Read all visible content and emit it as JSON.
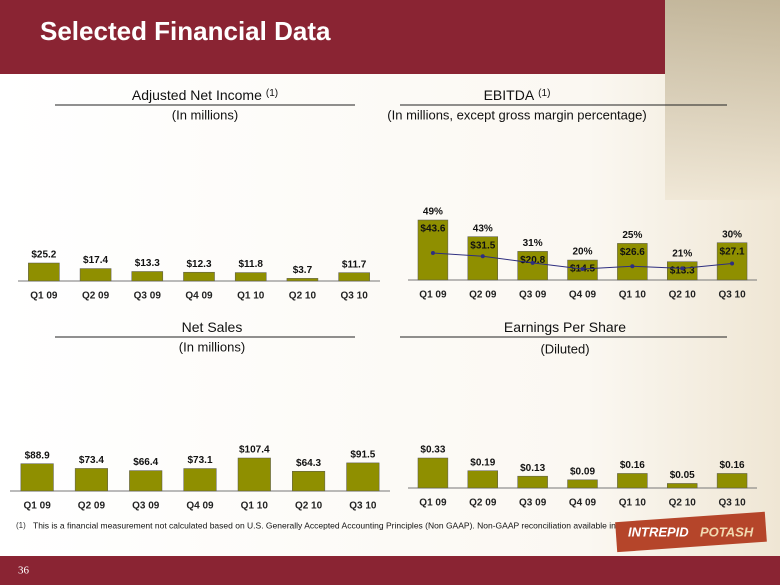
{
  "title": "Selected Financial Data",
  "chart_data": [
    {
      "type": "bar",
      "title": "Adjusted Net Income",
      "title_note": "(1)",
      "subtitle": "(In millions)",
      "categories": [
        "Q1 09",
        "Q2 09",
        "Q3 09",
        "Q4 09",
        "Q1 10",
        "Q2 10",
        "Q3 10"
      ],
      "values": [
        25.2,
        17.4,
        13.3,
        12.3,
        11.8,
        3.7,
        11.7
      ],
      "value_labels": [
        "$25.2",
        "$17.4",
        "$13.3",
        "$12.3",
        "$11.8",
        "$3.7",
        "$11.7"
      ],
      "color": "#8f8f00"
    },
    {
      "type": "bar-line",
      "title": "EBITDA",
      "title_note": "(1)",
      "subtitle": "(In millions, except gross margin percentage)",
      "categories": [
        "Q1 09",
        "Q2 09",
        "Q3 09",
        "Q4 09",
        "Q1 10",
        "Q2 10",
        "Q3 10"
      ],
      "values": [
        43.6,
        31.5,
        20.8,
        14.5,
        26.6,
        13.3,
        27.1
      ],
      "value_labels": [
        "$43.6",
        "$31.5",
        "$20.8",
        "$14.5",
        "$26.6",
        "$13.3",
        "$27.1"
      ],
      "color": "#8f8f00",
      "line_values": [
        49,
        43,
        31,
        20,
        25,
        21,
        30
      ],
      "line_value_labels": [
        "49%",
        "43%",
        "31%",
        "20%",
        "25%",
        "21%",
        "30%"
      ],
      "line_color": "#2e2e80"
    },
    {
      "type": "bar",
      "title": "Net Sales",
      "subtitle": "(In millions)",
      "categories": [
        "Q1 09",
        "Q2 09",
        "Q3 09",
        "Q4 09",
        "Q1 10",
        "Q2 10",
        "Q3 10"
      ],
      "values": [
        88.9,
        73.4,
        66.4,
        73.1,
        107.4,
        64.3,
        91.5
      ],
      "value_labels": [
        "$88.9",
        "$73.4",
        "$66.4",
        "$73.1",
        "$107.4",
        "$64.3",
        "$91.5"
      ],
      "color": "#8f8f00"
    },
    {
      "type": "bar",
      "title": "Earnings Per Share",
      "subtitle": "(Diluted)",
      "categories": [
        "Q1 09",
        "Q2 09",
        "Q3 09",
        "Q4 09",
        "Q1 10",
        "Q2 10",
        "Q3 10"
      ],
      "values": [
        0.33,
        0.19,
        0.13,
        0.09,
        0.16,
        0.05,
        0.16
      ],
      "value_labels": [
        "$0.33",
        "$0.19",
        "$0.13",
        "$0.09",
        "$0.16",
        "$0.05",
        "$0.16"
      ],
      "color": "#8f8f00"
    }
  ],
  "footnote": {
    "marker": "(1)",
    "text": "This is a financial  measurement not calculated based on U.S. Generally Accepted Accounting Principles (Non GAAP). Non-GAAP reconciliation available in the appendix to this presentation."
  },
  "logo": {
    "word1": "INTREPID",
    "word2": "POTASH"
  },
  "page_number": "36"
}
